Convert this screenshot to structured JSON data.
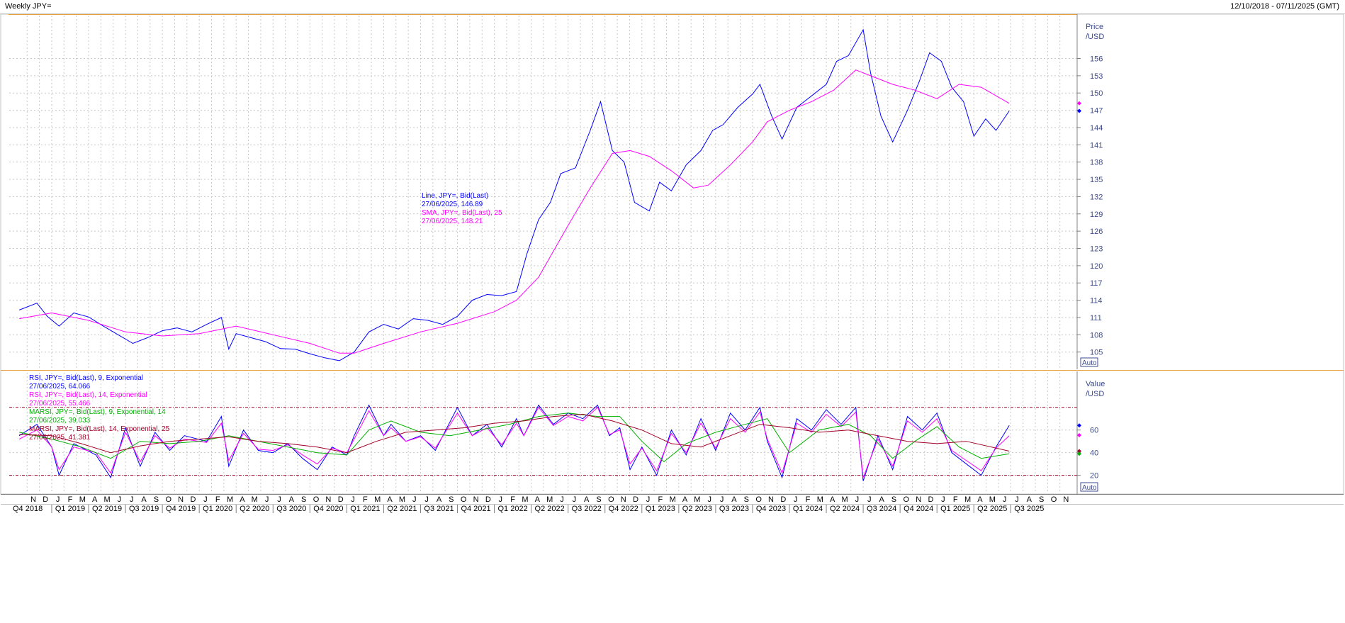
{
  "window": {
    "title": "Weekly JPY=",
    "date_range": "12/10/2018 - 07/11/2025 (GMT)"
  },
  "auto_label": "Auto",
  "chart_data": [
    {
      "type": "line",
      "panel": "price",
      "axis_label": "Price /USD",
      "y_axis_title": "Price",
      "y_axis_unit": "/USD",
      "ylim": [
        102.5,
        160
      ],
      "yticks": [
        105,
        108,
        111,
        114,
        117,
        120,
        123,
        126,
        129,
        132,
        135,
        138,
        141,
        144,
        147,
        150,
        153,
        156
      ],
      "grid": true,
      "legend": [
        {
          "text": "Line, JPY=, Bid(Last)",
          "color": "#0000ff"
        },
        {
          "text": "27/06/2025, 146.89",
          "color": "#0000ff"
        },
        {
          "text": "SMA, JPY=, Bid(Last),  25",
          "color": "#ff00ff"
        },
        {
          "text": "27/06/2025, 148.21",
          "color": "#ff00ff"
        }
      ],
      "series": [
        {
          "name": "Line, JPY=, Bid(Last)",
          "color": "#0000ff",
          "x": [
            2018.78,
            2018.9,
            2018.97,
            2019.05,
            2019.15,
            2019.25,
            2019.35,
            2019.45,
            2019.55,
            2019.65,
            2019.75,
            2019.85,
            2019.95,
            2020.05,
            2020.15,
            2020.2,
            2020.25,
            2020.35,
            2020.45,
            2020.55,
            2020.65,
            2020.75,
            2020.85,
            2020.95,
            2021.05,
            2021.15,
            2021.25,
            2021.35,
            2021.45,
            2021.55,
            2021.65,
            2021.75,
            2021.85,
            2021.95,
            2022.05,
            2022.15,
            2022.22,
            2022.3,
            2022.38,
            2022.45,
            2022.55,
            2022.65,
            2022.72,
            2022.8,
            2022.88,
            2022.95,
            2023.05,
            2023.12,
            2023.2,
            2023.3,
            2023.4,
            2023.48,
            2023.55,
            2023.65,
            2023.75,
            2023.8,
            2023.88,
            2023.95,
            2024.05,
            2024.15,
            2024.25,
            2024.32,
            2024.4,
            2024.5,
            2024.55,
            2024.62,
            2024.7,
            2024.8,
            2024.88,
            2024.95,
            2025.03,
            2025.1,
            2025.18,
            2025.25,
            2025.33,
            2025.4,
            2025.49
          ],
          "values": [
            112.3,
            113.5,
            111.2,
            109.5,
            111.8,
            111.1,
            109.5,
            108.0,
            106.5,
            107.5,
            108.7,
            109.2,
            108.5,
            109.8,
            111.0,
            105.5,
            108.2,
            107.5,
            106.8,
            105.6,
            105.5,
            104.7,
            104.0,
            103.5,
            105.0,
            108.5,
            109.8,
            109.0,
            110.8,
            110.5,
            109.8,
            111.2,
            114.0,
            115.0,
            114.8,
            115.5,
            122.0,
            128.0,
            131.0,
            136.0,
            137.0,
            143.5,
            148.5,
            140.0,
            138.0,
            131.0,
            129.5,
            134.5,
            133.0,
            137.5,
            140.0,
            143.5,
            144.5,
            147.5,
            149.8,
            151.5,
            146.0,
            142.0,
            147.5,
            149.5,
            151.5,
            155.5,
            156.5,
            161.0,
            153.5,
            146.0,
            141.5,
            147.0,
            152.0,
            157.0,
            155.5,
            151.0,
            148.5,
            142.5,
            145.5,
            143.5,
            146.89
          ]
        },
        {
          "name": "SMA, JPY=, Bid(Last),  25",
          "color": "#ff00ff",
          "x": [
            2018.78,
            2019.0,
            2019.25,
            2019.5,
            2019.75,
            2020.0,
            2020.25,
            2020.5,
            2020.75,
            2020.95,
            2021.05,
            2021.25,
            2021.5,
            2021.75,
            2022.0,
            2022.15,
            2022.3,
            2022.5,
            2022.65,
            2022.8,
            2022.92,
            2023.05,
            2023.2,
            2023.35,
            2023.45,
            2023.6,
            2023.75,
            2023.85,
            2024.0,
            2024.15,
            2024.3,
            2024.45,
            2024.55,
            2024.7,
            2024.85,
            2025.0,
            2025.15,
            2025.3,
            2025.49
          ],
          "values": [
            110.8,
            111.8,
            110.5,
            108.5,
            107.8,
            108.2,
            109.5,
            108.0,
            106.5,
            104.8,
            104.8,
            106.5,
            108.5,
            110.0,
            112.0,
            114.0,
            118.0,
            127.0,
            133.5,
            139.5,
            140.0,
            139.0,
            136.5,
            133.5,
            134.0,
            137.5,
            141.5,
            145.0,
            147.0,
            148.5,
            150.5,
            154.0,
            153.0,
            151.5,
            150.5,
            149.0,
            151.5,
            151.0,
            148.21
          ]
        }
      ],
      "markers": [
        {
          "value": 148.21,
          "color": "#ff00ff"
        },
        {
          "value": 146.89,
          "color": "#0000ff"
        }
      ]
    },
    {
      "type": "line",
      "panel": "rsi",
      "axis_label": "Value /USD",
      "y_axis_title": "Value",
      "y_axis_unit": "/USD",
      "ylim": [
        6,
        93
      ],
      "yticks": [
        20,
        40,
        60
      ],
      "reference_lines": [
        80,
        20
      ],
      "grid": true,
      "legend": [
        {
          "text": "RSI, JPY=, Bid(Last),  9, Exponential",
          "color": "#0000ff"
        },
        {
          "text": "27/06/2025, 64.066",
          "color": "#0000ff"
        },
        {
          "text": "RSI, JPY=, Bid(Last),  14, Exponential",
          "color": "#ff00ff"
        },
        {
          "text": "27/06/2025, 55.466",
          "color": "#ff00ff"
        },
        {
          "text": "MARSI, JPY=, Bid(Last),  9, Exponential, 14",
          "color": "#00b000"
        },
        {
          "text": "27/06/2025, 39.033",
          "color": "#00b000"
        },
        {
          "text": "MARSI, JPY=, Bid(Last),  14, Exponential, 25",
          "color": "#a00028"
        },
        {
          "text": "27/06/2025, 41.381",
          "color": "#a00028"
        }
      ],
      "series": [
        {
          "name": "RSI, JPY=, Bid(Last),  9, Exponential",
          "color": "#0000ff",
          "x": [
            2018.78,
            2018.9,
            2019.0,
            2019.05,
            2019.15,
            2019.3,
            2019.4,
            2019.5,
            2019.6,
            2019.7,
            2019.8,
            2019.9,
            2020.05,
            2020.15,
            2020.2,
            2020.3,
            2020.4,
            2020.5,
            2020.6,
            2020.7,
            2020.8,
            2020.9,
            2021.0,
            2021.05,
            2021.15,
            2021.25,
            2021.3,
            2021.4,
            2021.5,
            2021.6,
            2021.75,
            2021.85,
            2021.95,
            2022.05,
            2022.15,
            2022.2,
            2022.3,
            2022.4,
            2022.5,
            2022.6,
            2022.7,
            2022.78,
            2022.85,
            2022.92,
            2023.0,
            2023.1,
            2023.2,
            2023.3,
            2023.4,
            2023.5,
            2023.6,
            2023.7,
            2023.8,
            2023.85,
            2023.95,
            2024.05,
            2024.15,
            2024.25,
            2024.35,
            2024.45,
            2024.5,
            2024.6,
            2024.7,
            2024.8,
            2024.9,
            2025.0,
            2025.1,
            2025.2,
            2025.3,
            2025.4,
            2025.49
          ],
          "values": [
            55,
            65,
            45,
            20,
            48,
            38,
            18,
            62,
            28,
            58,
            42,
            55,
            50,
            72,
            28,
            60,
            42,
            40,
            48,
            35,
            25,
            45,
            38,
            55,
            82,
            55,
            65,
            50,
            55,
            42,
            80,
            55,
            65,
            45,
            70,
            55,
            82,
            65,
            75,
            70,
            82,
            55,
            62,
            25,
            45,
            20,
            60,
            38,
            70,
            42,
            75,
            60,
            80,
            50,
            18,
            70,
            60,
            78,
            65,
            80,
            15,
            55,
            25,
            72,
            60,
            75,
            40,
            30,
            20,
            45,
            64
          ]
        },
        {
          "name": "RSI, JPY=, Bid(Last),  14, Exponential",
          "color": "#ff00ff",
          "x": [
            2018.78,
            2018.9,
            2019.0,
            2019.05,
            2019.15,
            2019.3,
            2019.4,
            2019.5,
            2019.6,
            2019.7,
            2019.8,
            2019.9,
            2020.05,
            2020.15,
            2020.2,
            2020.3,
            2020.4,
            2020.5,
            2020.6,
            2020.7,
            2020.8,
            2020.9,
            2021.0,
            2021.05,
            2021.15,
            2021.25,
            2021.3,
            2021.4,
            2021.5,
            2021.6,
            2021.75,
            2021.85,
            2021.95,
            2022.05,
            2022.15,
            2022.2,
            2022.3,
            2022.4,
            2022.5,
            2022.6,
            2022.7,
            2022.78,
            2022.85,
            2022.92,
            2023.0,
            2023.1,
            2023.2,
            2023.3,
            2023.4,
            2023.5,
            2023.6,
            2023.7,
            2023.8,
            2023.85,
            2023.95,
            2024.05,
            2024.15,
            2024.25,
            2024.35,
            2024.45,
            2024.5,
            2024.6,
            2024.7,
            2024.8,
            2024.9,
            2025.0,
            2025.1,
            2025.2,
            2025.3,
            2025.4,
            2025.49
          ],
          "values": [
            52,
            60,
            45,
            25,
            45,
            40,
            22,
            58,
            32,
            55,
            44,
            52,
            49,
            66,
            33,
            57,
            43,
            42,
            47,
            38,
            30,
            44,
            40,
            52,
            77,
            55,
            62,
            50,
            54,
            44,
            75,
            55,
            62,
            47,
            66,
            55,
            80,
            64,
            72,
            68,
            80,
            56,
            60,
            30,
            44,
            24,
            57,
            40,
            66,
            44,
            70,
            58,
            76,
            52,
            22,
            66,
            58,
            74,
            63,
            76,
            18,
            52,
            28,
            68,
            58,
            70,
            42,
            33,
            24,
            44,
            55
          ]
        },
        {
          "name": "MARSI, JPY=, Bid(Last),  9, Exponential, 14",
          "color": "#00b000",
          "x": [
            2018.78,
            2019.0,
            2019.2,
            2019.4,
            2019.6,
            2019.8,
            2020.0,
            2020.2,
            2020.4,
            2020.6,
            2020.8,
            2021.0,
            2021.15,
            2021.3,
            2021.5,
            2021.7,
            2021.9,
            2022.1,
            2022.3,
            2022.5,
            2022.7,
            2022.85,
            2023.0,
            2023.15,
            2023.3,
            2023.5,
            2023.7,
            2023.85,
            2024.0,
            2024.2,
            2024.4,
            2024.55,
            2024.7,
            2024.85,
            2025.0,
            2025.15,
            2025.3,
            2025.49
          ],
          "values": [
            58,
            52,
            45,
            35,
            50,
            48,
            50,
            55,
            50,
            45,
            40,
            38,
            60,
            68,
            58,
            55,
            60,
            65,
            72,
            75,
            72,
            72,
            50,
            32,
            48,
            58,
            65,
            70,
            40,
            60,
            65,
            55,
            35,
            50,
            63,
            45,
            35,
            39.033
          ]
        },
        {
          "name": "MARSI, JPY=, Bid(Last),  14, Exponential, 25",
          "color": "#a00028",
          "x": [
            2018.78,
            2019.0,
            2019.2,
            2019.4,
            2019.6,
            2019.8,
            2020.0,
            2020.2,
            2020.4,
            2020.6,
            2020.8,
            2021.0,
            2021.2,
            2021.4,
            2021.6,
            2021.8,
            2022.0,
            2022.2,
            2022.4,
            2022.6,
            2022.8,
            2023.0,
            2023.2,
            2023.4,
            2023.6,
            2023.8,
            2024.0,
            2024.2,
            2024.4,
            2024.6,
            2024.8,
            2025.0,
            2025.2,
            2025.49
          ],
          "values": [
            56,
            55,
            48,
            40,
            46,
            50,
            52,
            54,
            50,
            48,
            45,
            40,
            50,
            58,
            60,
            62,
            66,
            68,
            72,
            74,
            68,
            60,
            48,
            45,
            55,
            65,
            62,
            58,
            60,
            55,
            50,
            48,
            50,
            41.381
          ]
        }
      ],
      "markers": [
        {
          "value": 64.066,
          "color": "#0000ff"
        },
        {
          "value": 55.466,
          "color": "#ff00ff"
        },
        {
          "value": 41.381,
          "color": "#a00028"
        },
        {
          "value": 39.033,
          "color": "#00b000"
        }
      ]
    }
  ],
  "x_axis": {
    "months": [
      "N",
      "D",
      "J",
      "F",
      "M",
      "A",
      "M",
      "J",
      "J",
      "A",
      "S",
      "O",
      "N",
      "D",
      "J",
      "F",
      "M",
      "A",
      "M",
      "J",
      "J",
      "A",
      "S",
      "O",
      "N",
      "D",
      "J",
      "F",
      "M",
      "A",
      "M",
      "J",
      "J",
      "A",
      "S",
      "O",
      "N",
      "D",
      "J",
      "F",
      "M",
      "A",
      "M",
      "J",
      "J",
      "A",
      "S",
      "O",
      "N",
      "D",
      "J",
      "F",
      "M",
      "A",
      "M",
      "J",
      "J",
      "A",
      "S",
      "O",
      "N",
      "D",
      "J",
      "F",
      "M",
      "A",
      "M",
      "J",
      "J",
      "A",
      "S",
      "O",
      "N",
      "D",
      "J",
      "F",
      "M",
      "A",
      "M",
      "J",
      "J",
      "A",
      "S",
      "O",
      "N"
    ],
    "quarters": [
      "Q4 2018",
      "Q1 2019",
      "Q2 2019",
      "Q3 2019",
      "Q4 2019",
      "Q1 2020",
      "Q2 2020",
      "Q3 2020",
      "Q4 2020",
      "Q1 2021",
      "Q2 2021",
      "Q3 2021",
      "Q4 2021",
      "Q1 2022",
      "Q2 2022",
      "Q3 2022",
      "Q4 2022",
      "Q1 2023",
      "Q2 2023",
      "Q3 2023",
      "Q4 2023",
      "Q1 2024",
      "Q2 2024",
      "Q3 2024",
      "Q4 2024",
      "Q1 2025",
      "Q2 2025",
      "Q3 2025"
    ]
  }
}
